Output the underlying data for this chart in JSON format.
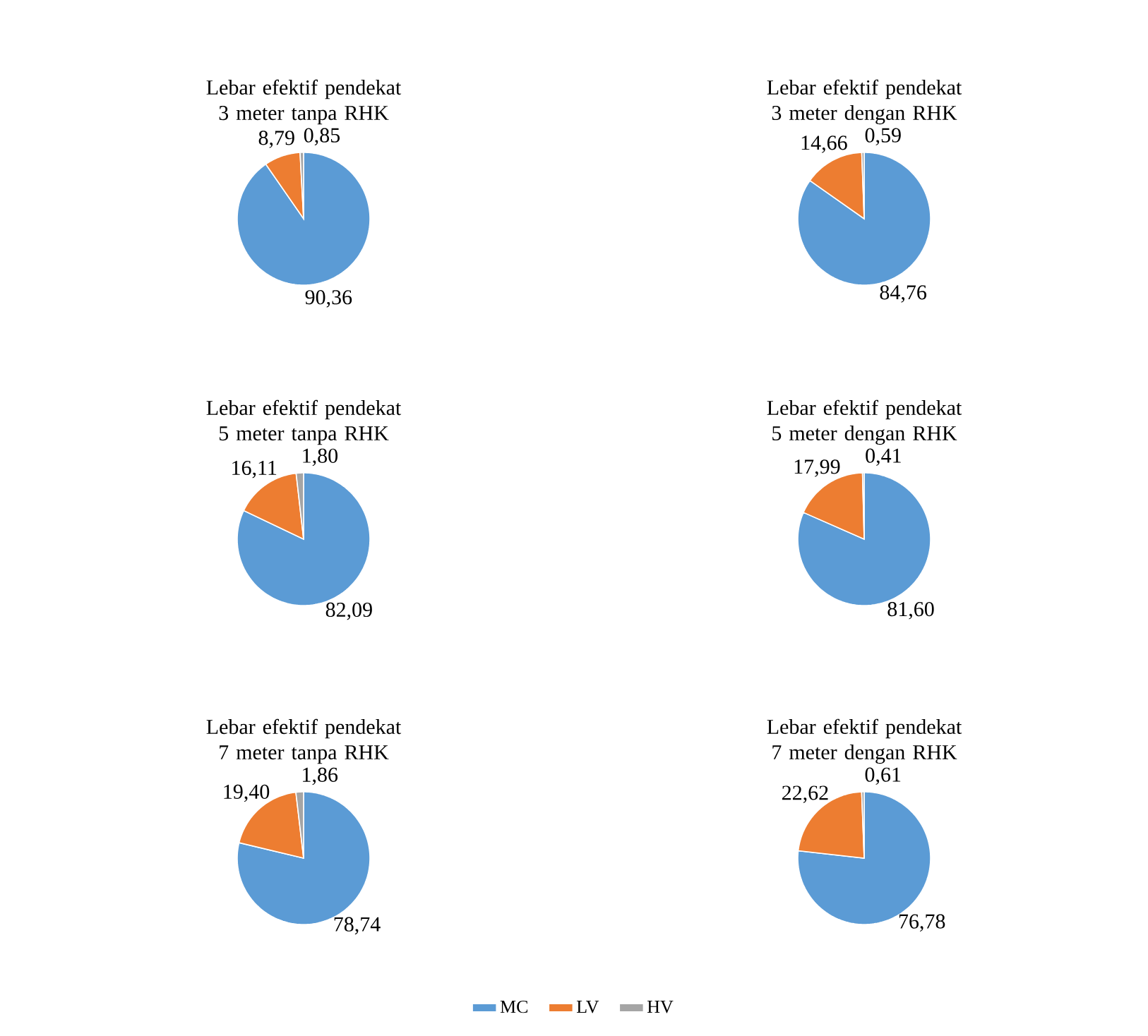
{
  "chart_data": [
    {
      "type": "pie",
      "title": "Lebar efektif pendekat 3 meter tanpa RHK",
      "categories": [
        null,
        null,
        null
      ],
      "values": [
        90.36,
        8.79,
        0.85
      ],
      "value_labels": [
        "90,36",
        "8,79",
        "0,85"
      ],
      "colors": [
        "#5b9bd5",
        "#ed7d31",
        "#a5a5a5"
      ]
    },
    {
      "type": "pie",
      "title": "Lebar efektif pendekat 3 meter dengan RHK",
      "categories": [
        null,
        null,
        null
      ],
      "values": [
        84.76,
        14.66,
        0.59
      ],
      "value_labels": [
        "84,76",
        "14,66",
        "0,59"
      ],
      "colors": [
        "#5b9bd5",
        "#ed7d31",
        "#a5a5a5"
      ]
    },
    {
      "type": "pie",
      "title": "Lebar efektif pendekat 5 meter tanpa RHK",
      "categories": [
        null,
        null,
        null
      ],
      "values": [
        82.09,
        16.11,
        1.8
      ],
      "value_labels": [
        "82,09",
        "16,11",
        "1,80"
      ],
      "colors": [
        "#5b9bd5",
        "#ed7d31",
        "#a5a5a5"
      ]
    },
    {
      "type": "pie",
      "title": "Lebar efektif pendekat 5 meter dengan RHK",
      "categories": [
        null,
        null,
        null
      ],
      "values": [
        81.6,
        17.99,
        0.41
      ],
      "value_labels": [
        "81,60",
        "17,99",
        "0,41"
      ],
      "colors": [
        "#5b9bd5",
        "#ed7d31",
        "#a5a5a5"
      ]
    },
    {
      "type": "pie",
      "title": "Lebar efektif pendekat 7 meter tanpa RHK",
      "categories": [
        null,
        null,
        null
      ],
      "values": [
        78.74,
        19.4,
        1.86
      ],
      "value_labels": [
        "78,74",
        "19,40",
        "1,86"
      ],
      "colors": [
        "#5b9bd5",
        "#ed7d31",
        "#a5a5a5"
      ]
    },
    {
      "type": "pie",
      "title": "Lebar efektif pendekat 7 meter dengan RHK",
      "categories": [
        "MC",
        "LV",
        "HV"
      ],
      "values": [
        76.78,
        22.62,
        0.61
      ],
      "value_labels": [
        "76,78",
        "22,62",
        "0,61"
      ],
      "colors": [
        "#5b9bd5",
        "#ed7d31",
        "#a5a5a5"
      ],
      "legend": "bottom"
    }
  ]
}
